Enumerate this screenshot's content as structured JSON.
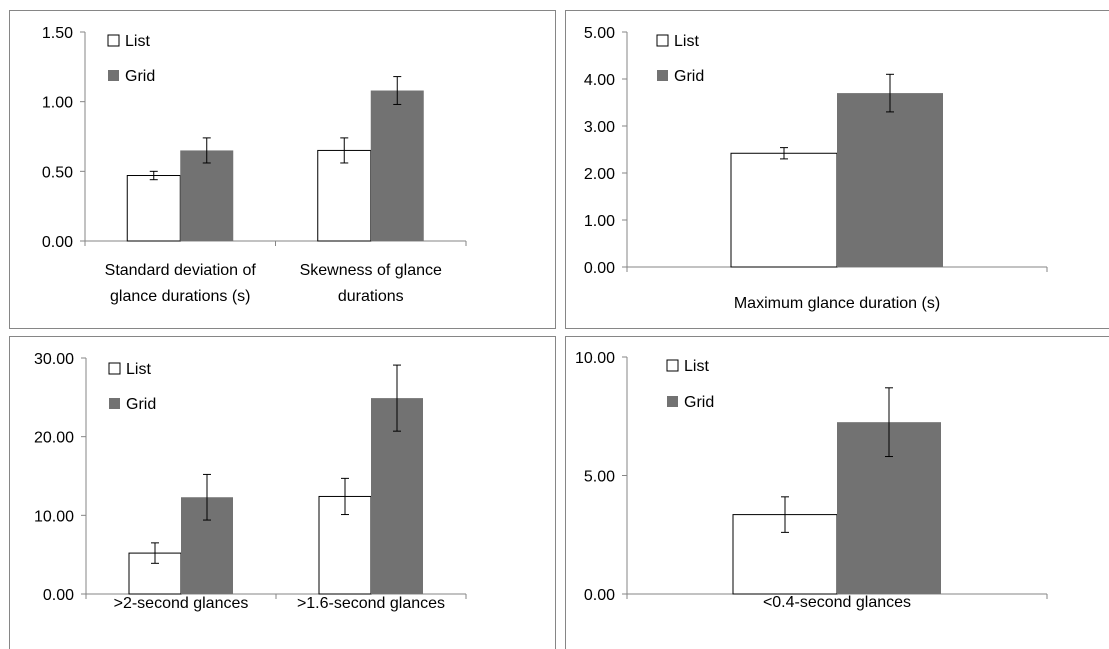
{
  "colors": {
    "list_fill": "#ffffff",
    "grid_fill": "#727272",
    "outline": "#000000",
    "axis": "#868686"
  },
  "chart_data": [
    {
      "type": "bar",
      "categories": [
        [
          "Standard deviation of",
          "glance durations (s)"
        ],
        [
          "Skewness of glance",
          "durations"
        ]
      ],
      "series": [
        {
          "name": "List",
          "values": [
            0.47,
            0.65
          ],
          "errors": [
            0.03,
            0.09
          ]
        },
        {
          "name": "Grid",
          "values": [
            0.65,
            1.08
          ],
          "errors": [
            0.09,
            0.1
          ]
        }
      ],
      "ylim": [
        0,
        1.5
      ],
      "yticks": [
        "0.00",
        "0.50",
        "1.00",
        "1.50"
      ],
      "legend": "top-left",
      "grid": false
    },
    {
      "type": "bar",
      "categories": [
        [
          "Maximum glance duration (s)"
        ]
      ],
      "series": [
        {
          "name": "List",
          "values": [
            2.42
          ],
          "errors": [
            0.12
          ]
        },
        {
          "name": "Grid",
          "values": [
            3.7
          ],
          "errors": [
            0.4
          ]
        }
      ],
      "ylim": [
        0,
        5
      ],
      "yticks": [
        "0.00",
        "1.00",
        "2.00",
        "3.00",
        "4.00",
        "5.00"
      ],
      "legend": "top-left",
      "grid": false
    },
    {
      "type": "bar",
      "categories": [
        [
          ">2-second glances"
        ],
        [
          ">1.6-second glances"
        ]
      ],
      "series": [
        {
          "name": "List",
          "values": [
            5.2,
            12.4
          ],
          "errors": [
            1.3,
            2.3
          ]
        },
        {
          "name": "Grid",
          "values": [
            12.3,
            24.9
          ],
          "errors": [
            2.9,
            4.2
          ]
        }
      ],
      "ylim": [
        0,
        30
      ],
      "yticks": [
        "0.00",
        "10.00",
        "20.00",
        "30.00"
      ],
      "legend": "top-left",
      "grid": false
    },
    {
      "type": "bar",
      "categories": [
        [
          "<0.4-second glances"
        ]
      ],
      "series": [
        {
          "name": "List",
          "values": [
            3.35
          ],
          "errors": [
            0.75
          ]
        },
        {
          "name": "Grid",
          "values": [
            7.25
          ],
          "errors": [
            1.45
          ]
        }
      ],
      "ylim": [
        0,
        10
      ],
      "yticks": [
        "0.00",
        "5.00",
        "10.00"
      ],
      "legend": "top-left",
      "grid": false
    }
  ]
}
